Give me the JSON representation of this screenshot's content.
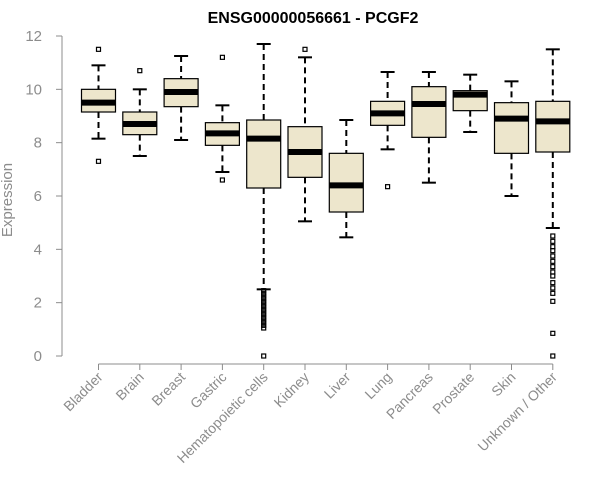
{
  "chart_data": {
    "type": "boxplot",
    "title": "ENSG00000056661 - PCGF2",
    "xlabel": "",
    "ylabel": "Expression",
    "ylim": [
      0,
      12
    ],
    "yticks": [
      0,
      2,
      4,
      6,
      8,
      10,
      12
    ],
    "box_color": "#ede6cc",
    "categories": [
      "Bladder",
      "Brain",
      "Breast",
      "Gastric",
      "Hematopoietic cells",
      "Kidney",
      "Liver",
      "Lung",
      "Pancreas",
      "Prostate",
      "Skin",
      "Unknown / Other"
    ],
    "boxes": [
      {
        "name": "Bladder",
        "whisker_low": 8.15,
        "q1": 9.15,
        "median": 9.5,
        "q3": 10.0,
        "whisker_high": 10.9,
        "outliers": [
          7.3,
          11.5
        ]
      },
      {
        "name": "Brain",
        "whisker_low": 7.5,
        "q1": 8.3,
        "median": 8.7,
        "q3": 9.15,
        "whisker_high": 10.0,
        "outliers": [
          10.7
        ]
      },
      {
        "name": "Breast",
        "whisker_low": 8.1,
        "q1": 9.35,
        "median": 9.9,
        "q3": 10.4,
        "whisker_high": 11.25,
        "outliers": []
      },
      {
        "name": "Gastric",
        "whisker_low": 6.9,
        "q1": 7.9,
        "median": 8.35,
        "q3": 8.75,
        "whisker_high": 9.4,
        "outliers": [
          6.6,
          11.2
        ]
      },
      {
        "name": "Hematopoietic cells",
        "whisker_low": 2.5,
        "q1": 6.3,
        "median": 8.15,
        "q3": 8.85,
        "whisker_high": 11.7,
        "outliers": [
          0.0,
          1.05,
          1.15,
          1.25,
          1.35,
          1.45,
          1.55,
          1.65,
          1.75,
          1.85,
          1.95,
          2.05,
          2.15,
          2.25,
          2.35,
          2.45
        ]
      },
      {
        "name": "Kidney",
        "whisker_low": 5.05,
        "q1": 6.7,
        "median": 7.65,
        "q3": 8.6,
        "whisker_high": 11.2,
        "outliers": [
          11.5
        ]
      },
      {
        "name": "Liver",
        "whisker_low": 4.45,
        "q1": 5.4,
        "median": 6.4,
        "q3": 7.6,
        "whisker_high": 8.85,
        "outliers": []
      },
      {
        "name": "Lung",
        "whisker_low": 7.75,
        "q1": 8.65,
        "median": 9.1,
        "q3": 9.55,
        "whisker_high": 10.65,
        "outliers": [
          6.35
        ]
      },
      {
        "name": "Pancreas",
        "whisker_low": 6.5,
        "q1": 8.2,
        "median": 9.45,
        "q3": 10.1,
        "whisker_high": 10.65,
        "outliers": []
      },
      {
        "name": "Prostate",
        "whisker_low": 8.4,
        "q1": 9.2,
        "median": 9.8,
        "q3": 9.95,
        "whisker_high": 10.55,
        "outliers": []
      },
      {
        "name": "Skin",
        "whisker_low": 6.0,
        "q1": 7.6,
        "median": 8.9,
        "q3": 9.5,
        "whisker_high": 10.3,
        "outliers": []
      },
      {
        "name": "Unknown / Other",
        "whisker_low": 4.8,
        "q1": 7.65,
        "median": 8.8,
        "q3": 9.55,
        "whisker_high": 11.5,
        "outliers": [
          0.0,
          0.85,
          2.05,
          2.35,
          2.55,
          2.75,
          3.0,
          3.15,
          3.35,
          3.55,
          3.75,
          3.95,
          4.1,
          4.3,
          4.5
        ]
      }
    ]
  }
}
